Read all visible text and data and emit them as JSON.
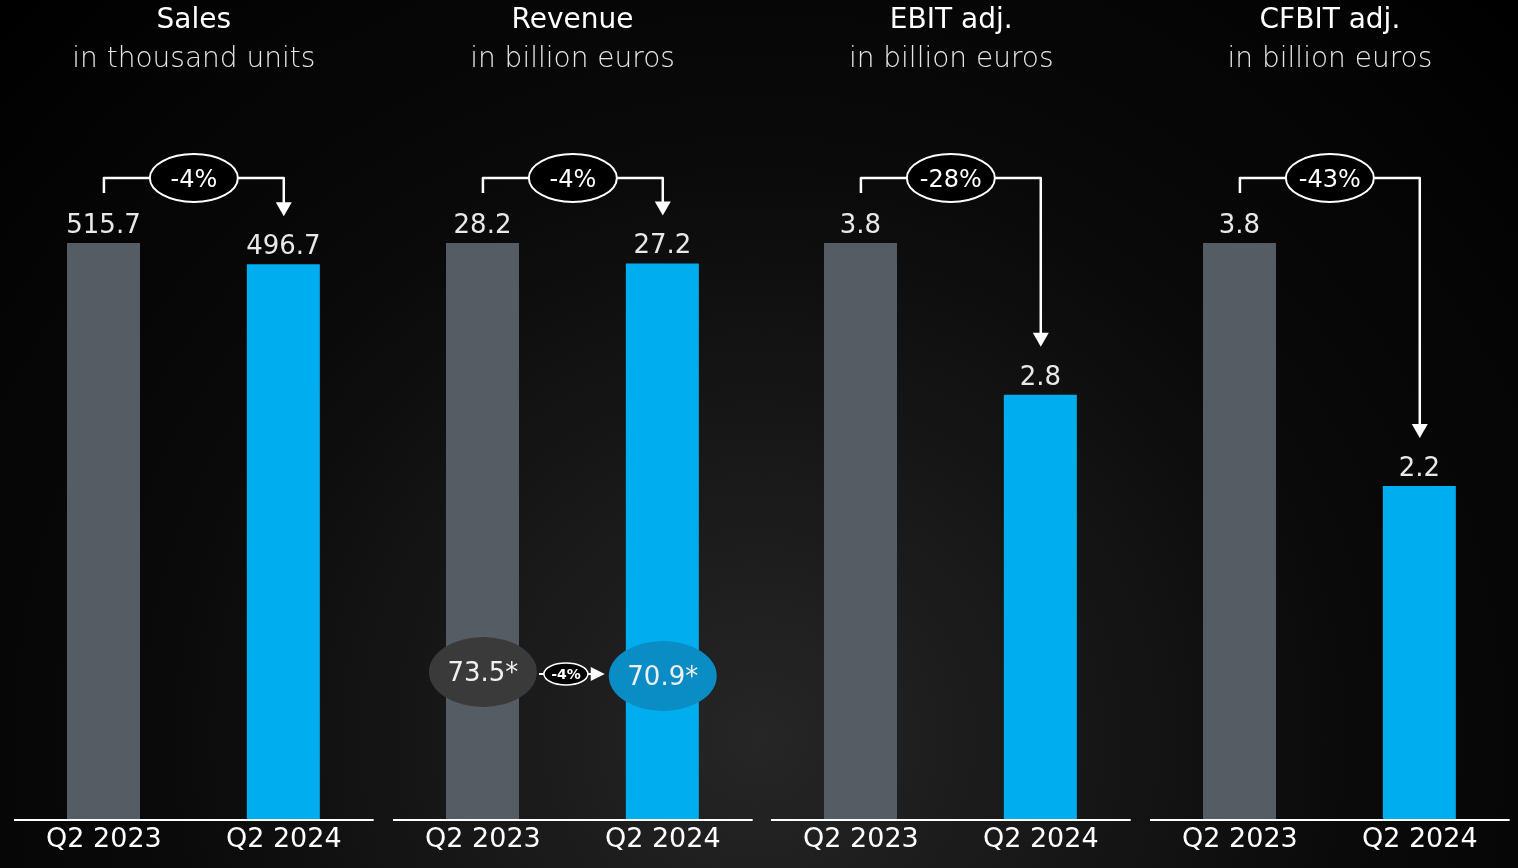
{
  "chart_data": [
    {
      "type": "bar",
      "title": "Sales",
      "subtitle": "in thousand units",
      "categories": [
        "Q2 2023",
        "Q2 2024"
      ],
      "values": [
        515.7,
        496.7
      ],
      "colors": [
        "#565c63",
        "#00adee"
      ],
      "data_labels": true,
      "annotations": [
        "-4%"
      ]
    },
    {
      "type": "bar",
      "title": "Revenue",
      "subtitle": "in billion euros",
      "categories": [
        "Q2 2023",
        "Q2 2024"
      ],
      "values": [
        28.2,
        27.2
      ],
      "colors": [
        "#565c63",
        "#00adee"
      ],
      "data_labels": true,
      "annotations": [
        "-4%",
        "73.5*",
        "-4%",
        "70.9*"
      ]
    },
    {
      "type": "bar",
      "title": "EBIT adj.",
      "subtitle": "in billion euros",
      "categories": [
        "Q2 2023",
        "Q2 2024"
      ],
      "values": [
        3.8,
        2.8
      ],
      "colors": [
        "#565c63",
        "#00adee"
      ],
      "data_labels": true,
      "annotations": [
        "-28%"
      ]
    },
    {
      "type": "bar",
      "title": "CFBIT adj.",
      "subtitle": "in billion euros",
      "categories": [
        "Q2 2023",
        "Q2 2024"
      ],
      "values": [
        3.8,
        2.2
      ],
      "colors": [
        "#565c63",
        "#00adee"
      ],
      "data_labels": true,
      "annotations": [
        "-43%"
      ]
    }
  ]
}
